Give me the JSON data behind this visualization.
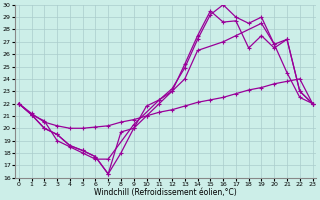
{
  "xlabel": "Windchill (Refroidissement éolien,°C)",
  "xlim": [
    -0.5,
    23.5
  ],
  "ylim": [
    16,
    30
  ],
  "xticks": [
    0,
    1,
    2,
    3,
    4,
    5,
    6,
    7,
    8,
    9,
    10,
    11,
    12,
    13,
    14,
    15,
    16,
    17,
    18,
    19,
    20,
    21,
    22,
    23
  ],
  "yticks": [
    16,
    17,
    18,
    19,
    20,
    21,
    22,
    23,
    24,
    25,
    26,
    27,
    28,
    29,
    30
  ],
  "background_color": "#cceee8",
  "grid_color": "#aacccc",
  "line_color": "#990099",
  "line1_x": [
    0,
    1,
    2,
    3,
    4,
    5,
    6,
    7,
    8,
    9,
    10,
    11,
    12,
    13,
    14,
    15,
    16,
    17,
    18,
    19,
    20,
    21,
    22,
    23
  ],
  "line1_y": [
    22.0,
    21.1,
    20.0,
    19.5,
    18.6,
    18.2,
    17.7,
    16.3,
    19.7,
    20.0,
    21.8,
    22.3,
    23.2,
    24.9,
    27.2,
    29.2,
    30.0,
    29.0,
    28.5,
    29.0,
    26.8,
    27.2,
    23.0,
    22.0
  ],
  "line2_x": [
    0,
    1,
    2,
    3,
    4,
    5,
    6,
    7,
    8,
    9,
    10,
    11,
    12,
    13,
    14,
    15,
    16,
    17,
    18,
    19,
    20,
    21,
    22,
    23
  ],
  "line2_y": [
    22.0,
    21.1,
    20.0,
    19.5,
    18.6,
    18.2,
    17.7,
    16.3,
    18.0,
    20.0,
    21.0,
    22.0,
    23.0,
    25.2,
    27.5,
    29.5,
    28.6,
    28.7,
    26.5,
    27.5,
    26.5,
    27.2,
    23.0,
    22.0
  ],
  "line3_x": [
    0,
    1,
    2,
    3,
    4,
    5,
    6,
    7,
    8,
    9,
    10,
    11,
    12,
    13,
    14,
    15,
    16,
    17,
    18,
    19,
    20,
    21,
    22,
    23
  ],
  "line3_y": [
    22.0,
    21.2,
    20.5,
    20.2,
    20.0,
    20.0,
    20.1,
    20.2,
    20.5,
    20.7,
    21.0,
    21.3,
    21.5,
    21.8,
    22.1,
    22.3,
    22.5,
    22.8,
    23.1,
    23.3,
    23.6,
    23.8,
    24.0,
    22.0
  ],
  "line4_x": [
    0,
    1,
    2,
    3,
    4,
    5,
    6,
    7,
    9,
    11,
    12,
    13,
    14,
    16,
    17,
    19,
    20,
    21,
    22,
    23
  ],
  "line4_y": [
    22.0,
    21.1,
    20.6,
    19.0,
    18.5,
    18.0,
    17.5,
    17.5,
    20.3,
    22.3,
    23.0,
    24.0,
    26.3,
    27.0,
    27.5,
    28.5,
    26.8,
    24.5,
    22.5,
    22.0
  ],
  "marker": "+"
}
